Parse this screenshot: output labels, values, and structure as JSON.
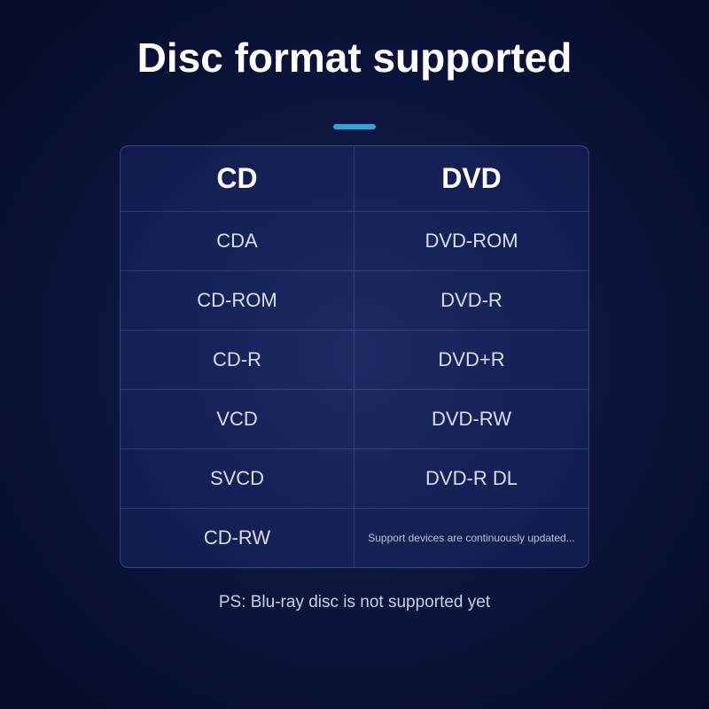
{
  "title": "Disc format supported",
  "accent_color": "#2aa8d8",
  "background": {
    "gradient_center": "#1a2456",
    "gradient_mid": "#0a1238",
    "gradient_edge": "#060c28"
  },
  "table": {
    "border_color": "rgba(120, 150, 220, 0.35)",
    "bg_color": "rgba(40, 60, 140, 0.25)",
    "columns": [
      {
        "header": "CD"
      },
      {
        "header": "DVD"
      }
    ],
    "rows": [
      {
        "left": "CDA",
        "right": "DVD-ROM"
      },
      {
        "left": "CD-ROM",
        "right": "DVD-R"
      },
      {
        "left": "CD-R",
        "right": "DVD+R"
      },
      {
        "left": "VCD",
        "right": "DVD-RW"
      },
      {
        "left": "SVCD",
        "right": "DVD-R DL"
      }
    ],
    "last_row": {
      "left": "CD-RW",
      "right_note": "Support devices are continuously updated..."
    }
  },
  "footer": "PS: Blu-ray disc is not supported yet",
  "typography": {
    "title_fontsize": 46,
    "title_weight": 700,
    "header_fontsize": 32,
    "header_weight": 700,
    "cell_fontsize": 22,
    "note_fontsize": 12,
    "footer_fontsize": 19,
    "text_color": "#ffffff",
    "cell_text_color": "#d8deef",
    "footer_color": "#c8d0e8"
  }
}
